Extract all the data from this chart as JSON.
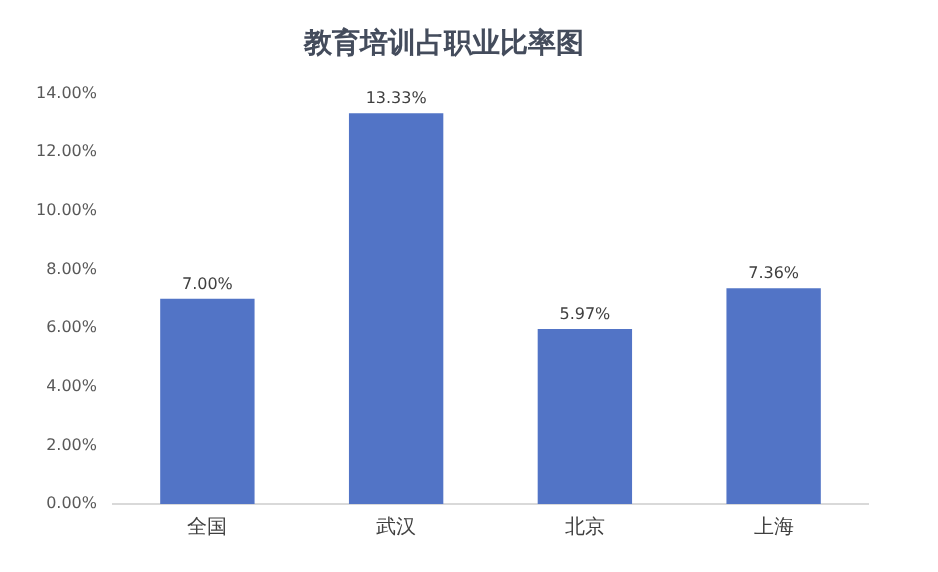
{
  "chart_data": {
    "type": "bar",
    "title": "教育培训占职业比率图",
    "categories": [
      "全国",
      "武汉",
      "北京",
      "上海"
    ],
    "values": [
      7.0,
      13.33,
      5.97,
      7.36
    ],
    "value_labels": [
      "7.00%",
      "13.33%",
      "5.97%",
      "7.36%"
    ],
    "color": "#5274c6",
    "ylim": [
      0,
      14
    ],
    "yticks": [
      {
        "value": 0,
        "label": "0.00%"
      },
      {
        "value": 2,
        "label": "2.00%"
      },
      {
        "value": 4,
        "label": "4.00%"
      },
      {
        "value": 6,
        "label": "6.00%"
      },
      {
        "value": 8,
        "label": "8.00%"
      },
      {
        "value": 10,
        "label": "10.00%"
      },
      {
        "value": 12,
        "label": "12.00%"
      },
      {
        "value": 14,
        "label": "14.00%"
      }
    ],
    "grid": false,
    "legend": false
  }
}
